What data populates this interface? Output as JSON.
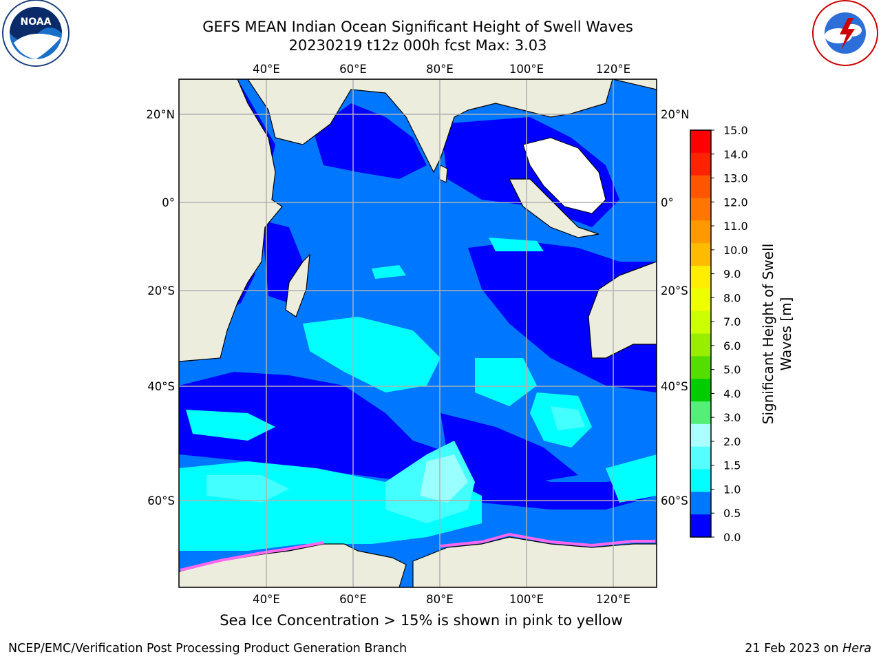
{
  "header": {
    "title_line1": "GEFS MEAN Indian Ocean Significant Height of Swell Waves",
    "title_line2": "20230219 t12z 000h fcst   Max: 3.03"
  },
  "logos": {
    "left_icon": "noaa-logo",
    "left_text": "NOAA",
    "right_icon": "nws-logo",
    "right_text": "NATIONAL WEATHER SERVICE"
  },
  "map": {
    "lon_ticks_top": [
      "40°E",
      "60°E",
      "80°E",
      "100°E",
      "120°E"
    ],
    "lon_ticks_bottom": [
      "40°E",
      "60°E",
      "80°E",
      "100°E",
      "120°E"
    ],
    "lat_ticks_left": [
      "20°N",
      "0°",
      "20°S",
      "40°S",
      "60°S"
    ],
    "lat_ticks_right": [
      "20°N",
      "0°",
      "20°S",
      "40°S",
      "60°S"
    ],
    "colors": {
      "land": "#ededdd",
      "ocean_low": "#0000ff",
      "ocean_mid": "#0077ff",
      "ocean_high": "#00ffff",
      "ocean_higher": "#44ffff",
      "ocean_top": "#99ffff",
      "sea_ice": "#ff66ee"
    }
  },
  "colorbar": {
    "levels": [
      "15.0",
      "14.0",
      "13.0",
      "12.0",
      "11.0",
      "10.0",
      "9.0",
      "8.0",
      "7.0",
      "6.0",
      "5.0",
      "4.0",
      "3.0",
      "2.0",
      "1.5",
      "1.0",
      "0.5",
      "0.0"
    ],
    "colors": [
      "#ff0000",
      "#ff2200",
      "#ff5500",
      "#ff7700",
      "#ff9900",
      "#ffbb00",
      "#ffee00",
      "#eeff00",
      "#ccff00",
      "#99ee00",
      "#55dd00",
      "#00cc00",
      "#55ee77",
      "#aaffff",
      "#55ffff",
      "#00ffff",
      "#0077ff",
      "#0000ff"
    ],
    "title_line1": "Significant Height of Swell",
    "title_line2": "Waves [m]"
  },
  "caption": "Sea Ice Concentration > 15% is shown in pink to yellow",
  "footer": {
    "left": "NCEP/EMC/Verification Post Processing Product Generation Branch",
    "right_date": "21 Feb 2023 on ",
    "right_host": "Hera"
  }
}
